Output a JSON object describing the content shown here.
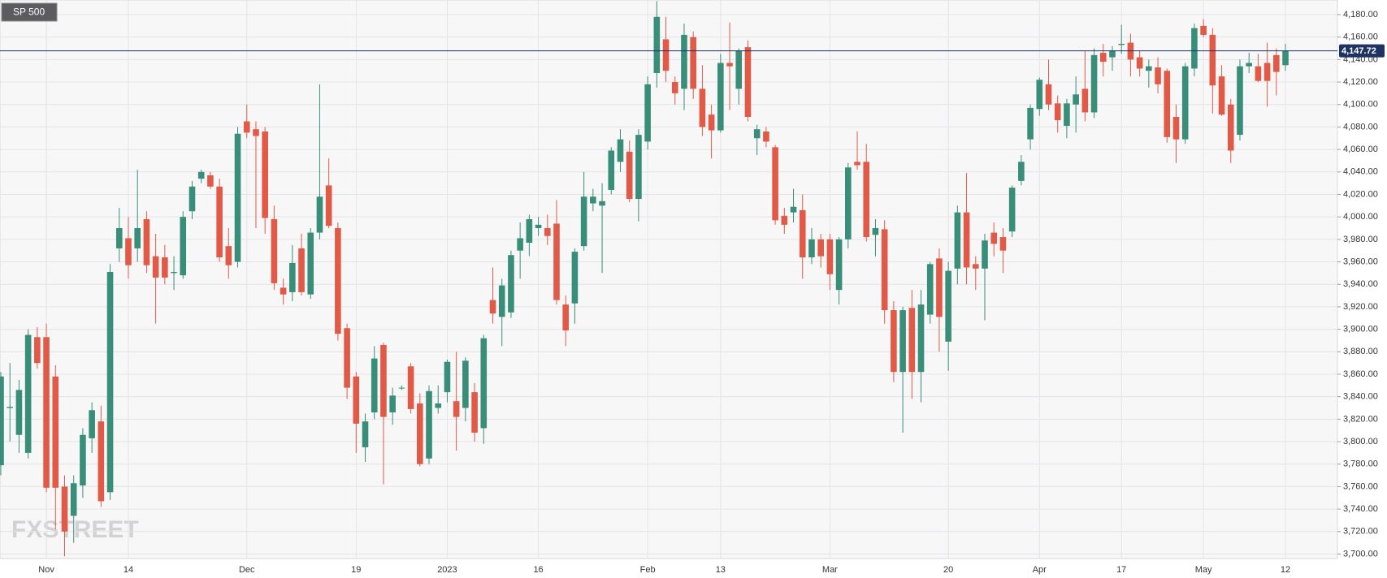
{
  "chart_data": {
    "type": "candlestick",
    "title": "SP 500",
    "watermark": "FXSTREET",
    "up_color": "#388e78",
    "down_color": "#e05a47",
    "grid": true,
    "categories": [
      null,
      null,
      null,
      null,
      null,
      "Nov",
      null,
      null,
      null,
      null,
      null,
      null,
      null,
      null,
      "14",
      null,
      null,
      null,
      null,
      null,
      null,
      null,
      null,
      null,
      null,
      null,
      null,
      "Dec",
      null,
      null,
      null,
      null,
      null,
      null,
      null,
      null,
      null,
      null,
      null,
      "19",
      null,
      null,
      null,
      null,
      null,
      null,
      null,
      null,
      null,
      "2023",
      null,
      null,
      null,
      null,
      null,
      null,
      null,
      null,
      null,
      "16",
      null,
      null,
      null,
      null,
      null,
      null,
      null,
      null,
      null,
      null,
      null,
      "Feb",
      null,
      null,
      null,
      null,
      null,
      null,
      null,
      "13",
      null,
      null,
      null,
      null,
      null,
      null,
      null,
      null,
      null,
      null,
      null,
      "Mar",
      null,
      null,
      null,
      null,
      null,
      null,
      null,
      null,
      null,
      null,
      null,
      null,
      "20",
      null,
      null,
      null,
      null,
      null,
      null,
      null,
      null,
      null,
      "Apr",
      null,
      null,
      null,
      null,
      null,
      null,
      null,
      null,
      "17",
      null,
      null,
      null,
      null,
      null,
      null,
      null,
      null,
      "May",
      null,
      null,
      null,
      null,
      null,
      null,
      null,
      null,
      "12"
    ],
    "open": [
      3779,
      3830,
      3806,
      3790,
      3893,
      3893,
      3858,
      3760,
      3734,
      3761,
      3803,
      3818,
      3755,
      3972,
      3981,
      3972,
      3998,
      3965,
      3964,
      3950,
      3948,
      4005,
      4034,
      4037,
      4027,
      3974,
      3960,
      4085,
      4078,
      4076,
      3998,
      3937,
      3933,
      3972,
      3931,
      3986,
      4028,
      3990,
      3901,
      3858,
      3795,
      3826,
      3886,
      3826,
      3848,
      3867,
      3834,
      3785,
      3830,
      3844,
      3836,
      3830,
      3844,
      3812,
      3926,
      3911,
      3915,
      3970,
      3977,
      3990,
      3990,
      3994,
      3922,
      3923,
      3974,
      4012,
      4010,
      4024,
      4049,
      4058,
      4016,
      4067,
      4128,
      4158,
      4120,
      4114,
      4160,
      4114,
      4091,
      4077,
      4137,
      4114,
      4151,
      4070,
      4076,
      4062,
      4001,
      4004,
      4006,
      3964,
      3980,
      3980,
      3935,
      3980,
      4049,
      4049,
      3984,
      3989,
      3917,
      3862,
      3919,
      3862,
      3913,
      3963,
      3889,
      3954,
      4004,
      3958,
      3954,
      3986,
      3982,
      3987,
      4032,
      4069,
      4096,
      4118,
      4101,
      4081,
      4100,
      4114,
      4093,
      4146,
      4142,
      4153,
      4155,
      4142,
      4130,
      4133,
      4130,
      4089,
      4069,
      4132,
      4170,
      4162,
      4125,
      4100,
      4073,
      4134,
      4134,
      4137,
      4144,
      4135
    ],
    "high": [
      3862,
      3870,
      3855,
      3900,
      3902,
      3905,
      3868,
      3770,
      3770,
      3812,
      3835,
      3832,
      3958,
      4008,
      4000,
      4042,
      4005,
      3985,
      3975,
      3965,
      4005,
      4032,
      4042,
      4040,
      4034,
      3990,
      4080,
      4100,
      4085,
      4080,
      4010,
      3945,
      3975,
      3985,
      3990,
      4118,
      4052,
      3995,
      3905,
      3862,
      3825,
      3885,
      3888,
      3848,
      3850,
      3870,
      3843,
      3850,
      3850,
      3873,
      3880,
      3875,
      3852,
      3895,
      3955,
      3945,
      3970,
      3995,
      4002,
      4000,
      4002,
      4015,
      3930,
      3972,
      4040,
      4025,
      4030,
      4062,
      4078,
      4068,
      4078,
      4125,
      4192,
      4178,
      4125,
      4172,
      4165,
      4135,
      4100,
      4145,
      4173,
      4150,
      4157,
      4082,
      4080,
      4064,
      4008,
      4025,
      4020,
      3990,
      3985,
      3985,
      3982,
      4048,
      4076,
      4065,
      3998,
      3997,
      3925,
      3920,
      3935,
      3935,
      3960,
      3972,
      3960,
      4010,
      4039,
      3965,
      3985,
      3995,
      3990,
      4028,
      4055,
      4100,
      4124,
      4140,
      4108,
      4105,
      4125,
      4148,
      4150,
      4154,
      4152,
      4171,
      4163,
      4148,
      4140,
      4142,
      4132,
      4100,
      4137,
      4172,
      4176,
      4168,
      4135,
      4105,
      4140,
      4146,
      4145,
      4155,
      4150,
      4154
    ],
    "low": [
      3770,
      3800,
      3790,
      3785,
      3865,
      3755,
      3722,
      3698,
      3710,
      3750,
      3790,
      3742,
      3748,
      3960,
      3945,
      3960,
      3950,
      3905,
      3940,
      3935,
      3945,
      3998,
      4030,
      4025,
      3960,
      3945,
      3955,
      4070,
      3990,
      3985,
      3935,
      3922,
      3925,
      3930,
      3927,
      3980,
      3990,
      3890,
      3838,
      3790,
      3782,
      3820,
      3762,
      3815,
      3846,
      3825,
      3778,
      3780,
      3825,
      3835,
      3792,
      3818,
      3800,
      3798,
      3905,
      3885,
      3910,
      3945,
      3965,
      3983,
      3975,
      3922,
      3885,
      3905,
      3970,
      4005,
      3950,
      4020,
      4040,
      4013,
      3996,
      4060,
      4115,
      4120,
      4100,
      4095,
      4105,
      4072,
      4052,
      4075,
      4095,
      4100,
      4085,
      4055,
      4062,
      3993,
      3985,
      3995,
      3945,
      3958,
      3955,
      3935,
      3922,
      3972,
      4042,
      3978,
      3965,
      3905,
      3853,
      3808,
      3838,
      3835,
      3905,
      3880,
      3863,
      3940,
      3940,
      3935,
      3908,
      3965,
      3950,
      3982,
      4028,
      4060,
      4090,
      4095,
      4075,
      4070,
      4075,
      4085,
      4088,
      4125,
      4130,
      4145,
      4125,
      4125,
      4115,
      4110,
      4066,
      4048,
      4065,
      4125,
      4160,
      4092,
      4090,
      4048,
      4068,
      4128,
      4120,
      4098,
      4108,
      4130
    ],
    "close": [
      3858,
      3831,
      3846,
      3895,
      3870,
      3759,
      3759,
      3720,
      3763,
      3806,
      3828,
      3747,
      3951,
      3990,
      3957,
      3990,
      3957,
      3946,
      3946,
      3951,
      4000,
      4027,
      4040,
      4027,
      3964,
      3957,
      4074,
      4075,
      4072,
      3999,
      3941,
      3931,
      3959,
      3933,
      3986,
      4018,
      3992,
      3896,
      3848,
      3816,
      3818,
      3874,
      3822,
      3841,
      3848,
      3829,
      3780,
      3845,
      3834,
      3871,
      3822,
      3872,
      3808,
      3892,
      3914,
      3939,
      3966,
      3981,
      3998,
      3993,
      3983,
      3926,
      3899,
      3969,
      4018,
      4018,
      4014,
      4059,
      4069,
      4016,
      4073,
      4118,
      4178,
      4130,
      4110,
      4162,
      4114,
      4080,
      4077,
      4137,
      4134,
      4148,
      4089,
      4078,
      4067,
      3997,
      3993,
      4009,
      3964,
      3980,
      3965,
      3949,
      3980,
      4044,
      4046,
      3982,
      3990,
      3917,
      3862,
      3917,
      3862,
      3922,
      3958,
      3911,
      3952,
      4004,
      3955,
      3954,
      3979,
      3976,
      3970,
      4026,
      4049,
      4097,
      4122,
      4100,
      4086,
      4101,
      4109,
      4093,
      4144,
      4138,
      4148,
      4154,
      4140,
      4132,
      4134,
      4118,
      4071,
      4069,
      4134,
      4168,
      4162,
      4117,
      4091,
      4059,
      4134,
      4137,
      4121,
      4121,
      4129,
      4147.72
    ],
    "last_price": {
      "value": 4147.72,
      "label": "4,147.72"
    },
    "ylim": [
      3696,
      4193
    ],
    "yticks": [
      {
        "value": 3700,
        "label": "3,700.00"
      },
      {
        "value": 3720,
        "label": "3,720.00"
      },
      {
        "value": 3740,
        "label": "3,740.00"
      },
      {
        "value": 3760,
        "label": "3,760.00"
      },
      {
        "value": 3780,
        "label": "3,780.00"
      },
      {
        "value": 3800,
        "label": "3,800.00"
      },
      {
        "value": 3820,
        "label": "3,820.00"
      },
      {
        "value": 3840,
        "label": "3,840.00"
      },
      {
        "value": 3860,
        "label": "3,860.00"
      },
      {
        "value": 3880,
        "label": "3,880.00"
      },
      {
        "value": 3900,
        "label": "3,900.00"
      },
      {
        "value": 3920,
        "label": "3,920.00"
      },
      {
        "value": 3940,
        "label": "3,940.00"
      },
      {
        "value": 3960,
        "label": "3,960.00"
      },
      {
        "value": 3980,
        "label": "3,980.00"
      },
      {
        "value": 4000,
        "label": "4,000.00"
      },
      {
        "value": 4020,
        "label": "4,020.00"
      },
      {
        "value": 4040,
        "label": "4,040.00"
      },
      {
        "value": 4060,
        "label": "4,060.00"
      },
      {
        "value": 4080,
        "label": "4,080.00"
      },
      {
        "value": 4100,
        "label": "4,100.00"
      },
      {
        "value": 4120,
        "label": "4,120.00"
      },
      {
        "value": 4140,
        "label": "4,140.00"
      },
      {
        "value": 4160,
        "label": "4,160.00"
      },
      {
        "value": 4180,
        "label": "4,180.00"
      }
    ]
  }
}
